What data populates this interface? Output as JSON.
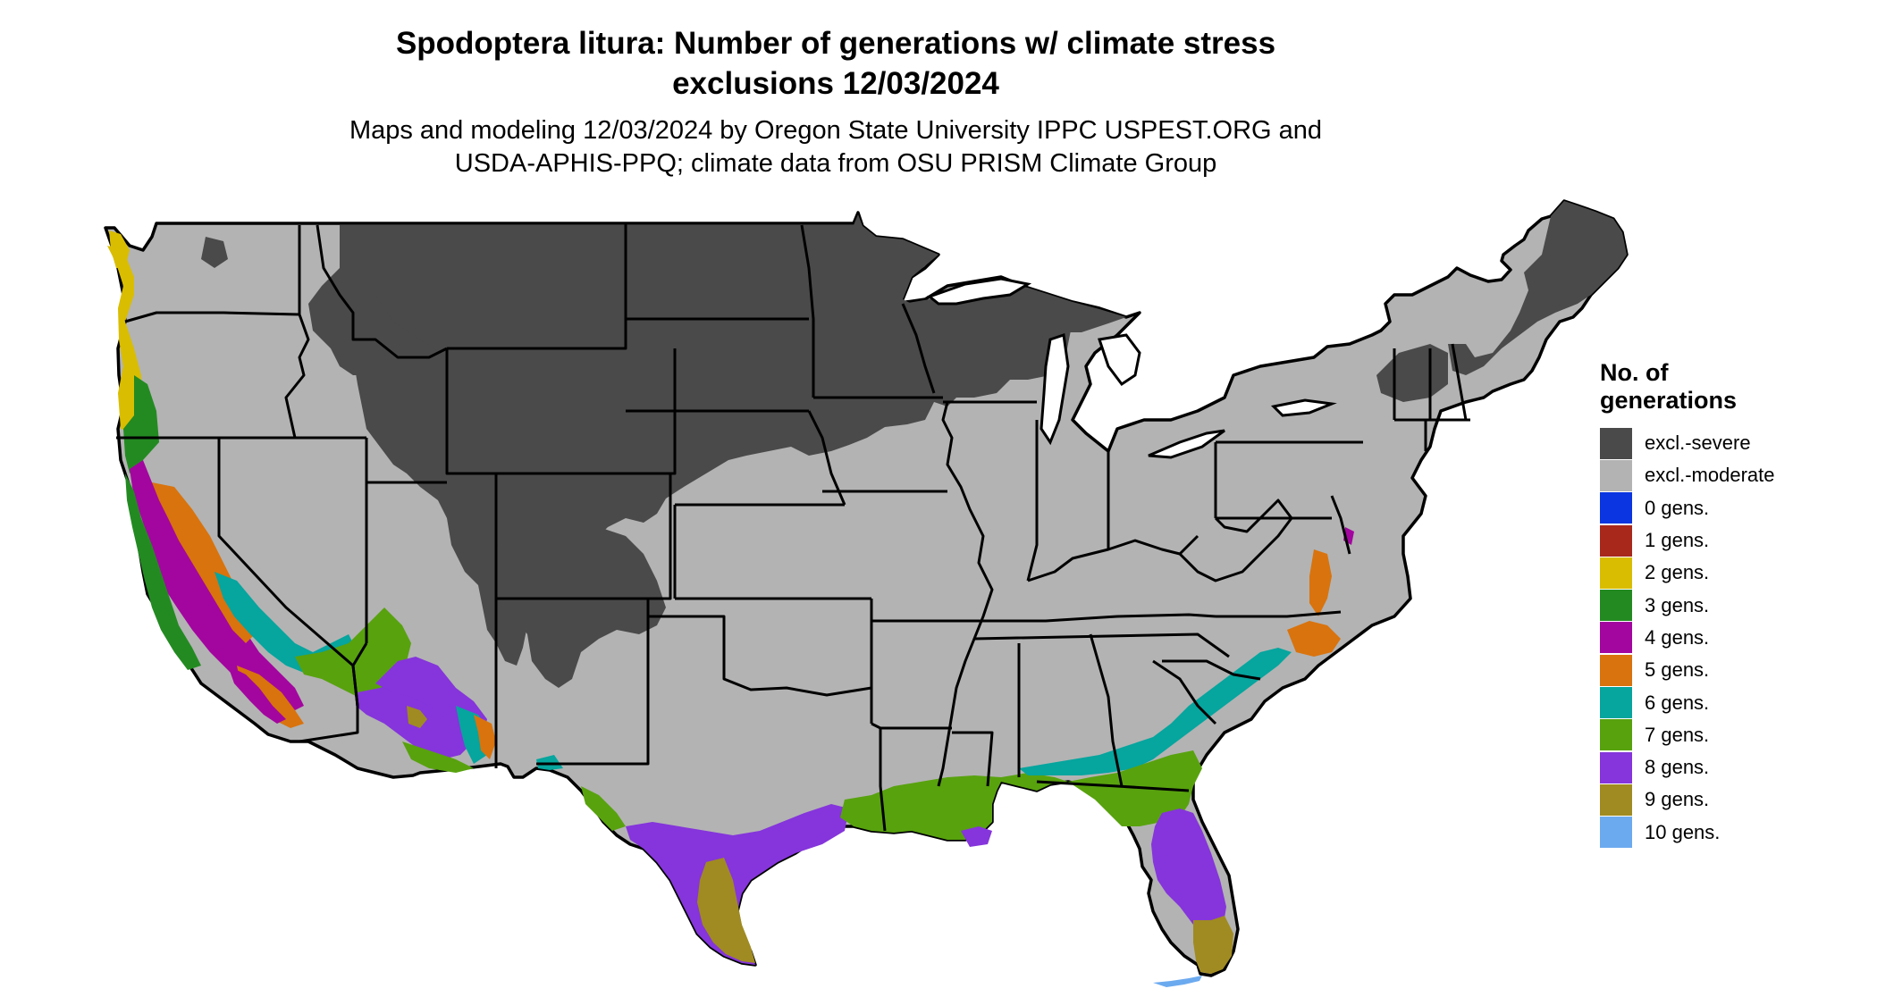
{
  "title_line1": "Spodoptera litura: Number of generations w/ climate stress",
  "title_line2": "exclusions 12/03/2024",
  "subtitle_line1": "Maps and modeling 12/03/2024 by Oregon State University IPPC USPEST.ORG and",
  "subtitle_line2": "USDA-APHIS-PPQ; climate data from OSU PRISM Climate Group",
  "legend": {
    "title_line1": "No. of",
    "title_line2": "generations",
    "items": [
      {
        "label": "excl.-severe",
        "color": "#4a4a4a"
      },
      {
        "label": "excl.-moderate",
        "color": "#b3b3b3"
      },
      {
        "label": "0 gens.",
        "color": "#0a35e0"
      },
      {
        "label": "1 gens.",
        "color": "#a8281c"
      },
      {
        "label": "2 gens.",
        "color": "#d9bd00"
      },
      {
        "label": "3 gens.",
        "color": "#238a22"
      },
      {
        "label": "4 gens.",
        "color": "#a3069f"
      },
      {
        "label": "5 gens.",
        "color": "#d9730d"
      },
      {
        "label": "6 gens.",
        "color": "#06a59e"
      },
      {
        "label": "7 gens.",
        "color": "#58a20e"
      },
      {
        "label": "8 gens.",
        "color": "#8535db"
      },
      {
        "label": "9 gens.",
        "color": "#a08b22"
      },
      {
        "label": "10 gens.",
        "color": "#6caaef"
      }
    ]
  }
}
